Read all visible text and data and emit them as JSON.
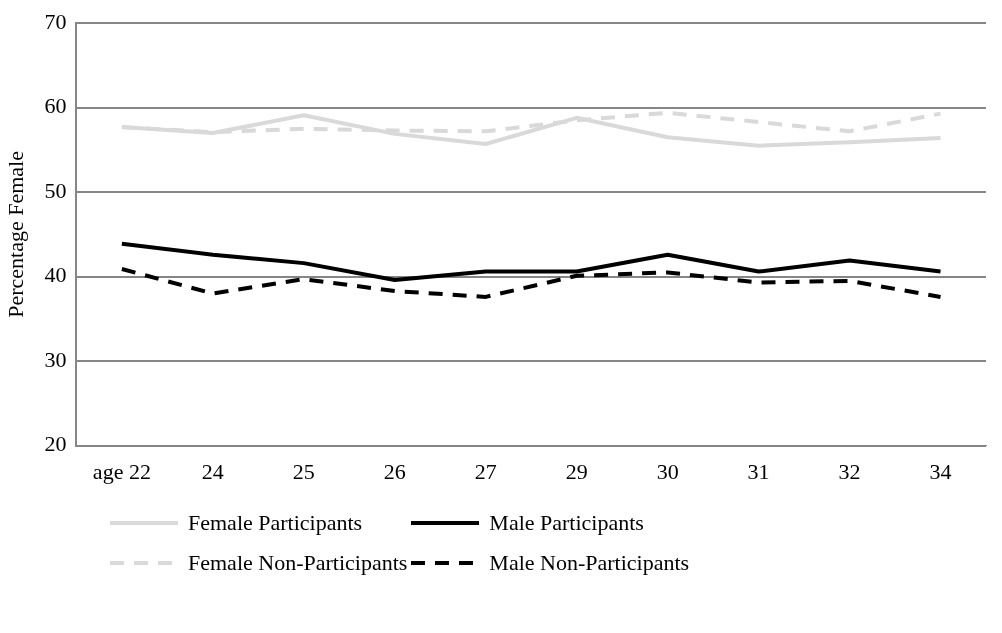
{
  "chart_data": {
    "type": "line",
    "ylabel": "Percentage Female",
    "categories": [
      "age 22",
      "24",
      "25",
      "26",
      "27",
      "29",
      "30",
      "31",
      "32",
      "34"
    ],
    "series": [
      {
        "name": "Female Participants",
        "color": "#d9d9d9",
        "line_style": "solid",
        "values": [
          57.7,
          57.0,
          59.1,
          56.9,
          55.7,
          58.8,
          56.5,
          55.5,
          55.9,
          56.4
        ]
      },
      {
        "name": "Male Participants",
        "color": "#000000",
        "line_style": "solid",
        "values": [
          43.9,
          42.6,
          41.6,
          39.6,
          40.6,
          40.6,
          42.6,
          40.6,
          41.9,
          40.6
        ]
      },
      {
        "name": "Female Non-Participants",
        "color": "#d9d9d9",
        "line_style": "dashed",
        "values": [
          57.7,
          57.1,
          57.5,
          57.3,
          57.2,
          58.5,
          59.4,
          58.3,
          57.2,
          59.3
        ]
      },
      {
        "name": "Male Non-Participants",
        "color": "#000000",
        "line_style": "dashed",
        "values": [
          40.9,
          38.0,
          39.7,
          38.3,
          37.6,
          40.1,
          40.5,
          39.3,
          39.5,
          37.6
        ]
      }
    ],
    "ylim": [
      20,
      70
    ],
    "yticks": [
      20,
      30,
      40,
      50,
      60,
      70
    ],
    "grid": "y",
    "legend": "bottom",
    "marker": "none"
  }
}
